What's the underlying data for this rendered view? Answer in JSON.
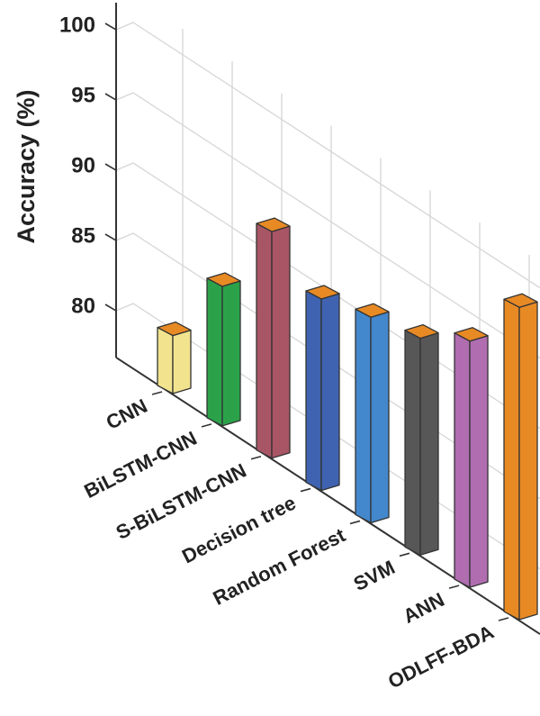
{
  "chart_data": {
    "type": "bar",
    "style": "3d",
    "title": "",
    "xlabel": "",
    "ylabel": "Accuracy (%)",
    "ylim": [
      76.67,
      100
    ],
    "yticks": [
      80,
      85,
      90,
      95,
      100
    ],
    "grid": true,
    "categories": [
      "CNN",
      "BiLSTM-CNN",
      "S-BiLSTM-CNN",
      "Decision tree",
      "Random Forest",
      "SVM",
      "ANN",
      "ODLFF-BDA"
    ],
    "values": [
      80.8,
      86.6,
      92.8,
      90.3,
      91.3,
      92.1,
      94.2,
      98.9
    ],
    "colors": [
      "#F2E48F",
      "#2BA24A",
      "#A85565",
      "#3F63B0",
      "#4388CC",
      "#575757",
      "#B06DB0",
      "#E88A24"
    ],
    "top_face_color": "#E88A24"
  }
}
